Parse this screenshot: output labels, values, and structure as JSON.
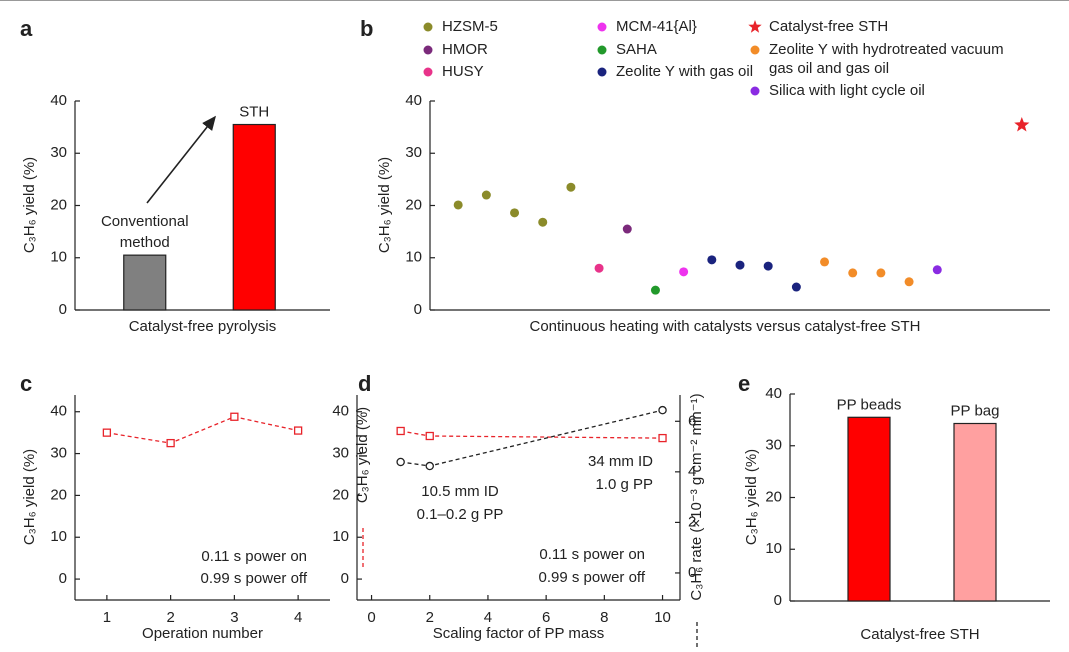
{
  "chart_data": [
    {
      "panel": "a",
      "type": "bar",
      "ylabel": "C₃H₆ yield (%)",
      "xlabel": "Catalyst-free pyrolysis",
      "categories": [
        "Conventional method",
        "STH"
      ],
      "values": [
        10.5,
        35.5
      ],
      "colors": [
        "#808080",
        "#ff0000"
      ],
      "ylim": [
        0,
        40
      ],
      "yticks": [
        0,
        10,
        20,
        30,
        40
      ]
    },
    {
      "panel": "b",
      "type": "scatter",
      "ylabel": "C₃H₆ yield (%)",
      "xlabel": "Continuous heating with catalysts versus catalyst-free STH",
      "xlim": [
        0,
        22
      ],
      "ylim": [
        0,
        40
      ],
      "yticks": [
        0,
        10,
        20,
        30,
        40
      ],
      "series": [
        {
          "name": "HZSM-5",
          "color": "#8b8b2a",
          "marker": "circle",
          "x": [
            1,
            2,
            3,
            4,
            5
          ],
          "values": [
            20.1,
            22.0,
            18.6,
            16.8,
            23.5
          ]
        },
        {
          "name": "HMOR",
          "color": "#7b2a7b",
          "marker": "circle",
          "x": [
            7
          ],
          "values": [
            15.5
          ]
        },
        {
          "name": "HUSY",
          "color": "#e8338a",
          "marker": "circle",
          "x": [
            6
          ],
          "values": [
            8.0
          ]
        },
        {
          "name": "MCM-41{Al}",
          "color": "#ee33ee",
          "marker": "circle",
          "x": [
            9
          ],
          "values": [
            7.3
          ]
        },
        {
          "name": "SAHA",
          "color": "#22992b",
          "marker": "circle",
          "x": [
            8
          ],
          "values": [
            3.8
          ]
        },
        {
          "name": "Zeolite Y with gas oil",
          "color": "#1a237e",
          "marker": "circle",
          "x": [
            10,
            11,
            12,
            13
          ],
          "values": [
            9.6,
            8.6,
            8.4,
            4.4
          ]
        },
        {
          "name": "Catalyst-free STH",
          "color": "#e8232a",
          "marker": "star",
          "x": [
            21
          ],
          "values": [
            35.4
          ]
        },
        {
          "name": "Zeolite Y with hydrotreated vacuum gas oil and gas oil",
          "color": "#f28c28",
          "marker": "circle",
          "x": [
            14,
            15,
            16,
            17
          ],
          "values": [
            9.2,
            7.1,
            7.1,
            5.4
          ]
        },
        {
          "name": "Silica with light cycle oil",
          "color": "#8a2be2",
          "marker": "circle",
          "x": [
            18
          ],
          "values": [
            7.7
          ]
        }
      ]
    },
    {
      "panel": "c",
      "type": "line",
      "ylabel": "C₃H₆ yield (%)",
      "xlabel": "Operation number",
      "x": [
        1,
        2,
        3,
        4
      ],
      "xlim": [
        0.5,
        4.5
      ],
      "xticks": [
        1,
        2,
        3,
        4
      ],
      "ylim": [
        -5,
        44
      ],
      "yticks": [
        0,
        10,
        20,
        30,
        40
      ],
      "series": [
        {
          "color": "#e8232a",
          "marker": "square",
          "values": [
            35.0,
            32.5,
            38.8,
            35.5
          ]
        }
      ],
      "annotations": [
        "0.11 s power on",
        "0.99 s power off"
      ]
    },
    {
      "panel": "d",
      "type": "line",
      "ylabel": "C₃H₆ yield (%)",
      "y2label": "C₃H₆ rate (×10⁻³ g cm⁻² min⁻¹)",
      "xlabel": "Scaling factor of PP mass",
      "x": [
        1,
        2,
        10
      ],
      "xlim": [
        -0.5,
        10.6
      ],
      "xticks": [
        0,
        2,
        4,
        6,
        8,
        10
      ],
      "ylim": [
        -5,
        44
      ],
      "yticks": [
        0,
        10,
        20,
        30,
        40
      ],
      "y2lim": [
        -1.07,
        7.04
      ],
      "y2ticks": [
        0,
        2,
        4,
        6
      ],
      "series": [
        {
          "color": "#e8232a",
          "marker": "square",
          "values": [
            35.4,
            34.2,
            33.7
          ]
        },
        {
          "color": "#222222",
          "marker": "circle",
          "axis": "y2",
          "values": [
            4.39,
            4.23,
            6.44
          ]
        }
      ],
      "annotations": [
        "10.5 mm ID",
        "0.1–0.2 g PP",
        "34 mm ID",
        "1.0 g PP",
        "0.11 s power on",
        "0.99 s power off"
      ]
    },
    {
      "panel": "e",
      "type": "bar",
      "ylabel": "C₃H₆ yield (%)",
      "xlabel": "Catalyst-free STH",
      "categories": [
        "PP beads",
        "PP bag"
      ],
      "values": [
        35.5,
        34.3
      ],
      "colors": [
        "#ff0000",
        "#ffa0a0"
      ],
      "ylim": [
        0,
        40
      ],
      "yticks": [
        0,
        10,
        20,
        30,
        40
      ]
    }
  ]
}
